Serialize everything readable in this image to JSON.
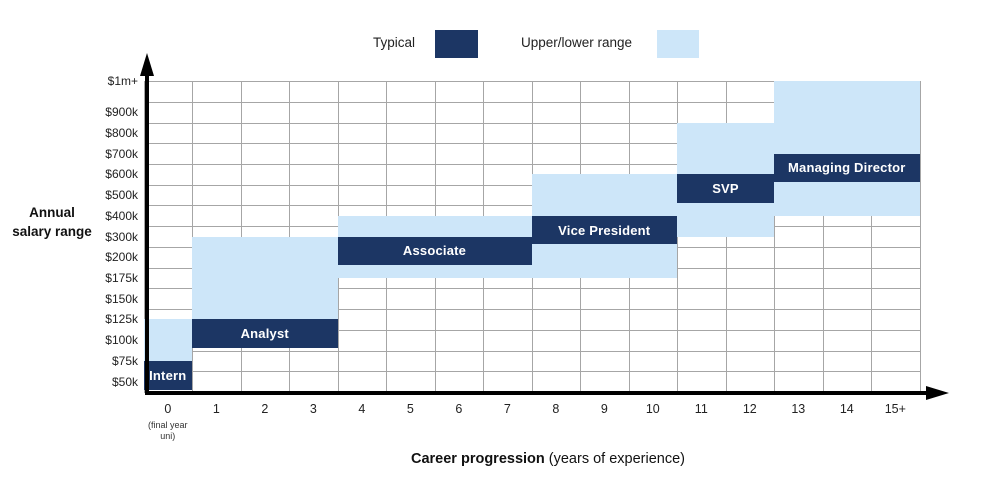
{
  "chart_data": {
    "type": "bar",
    "subtype": "floating-range-boxes",
    "title": "",
    "xlabel_bold": "Career progression",
    "xlabel_regular": " (years of experience)",
    "ylabel": "Annual salary range",
    "x_ticks": [
      "0",
      "1",
      "2",
      "3",
      "4",
      "5",
      "6",
      "7",
      "8",
      "9",
      "10",
      "11",
      "12",
      "13",
      "14",
      "15+"
    ],
    "x_tick_zero_note": "(final year uni)",
    "y_ticks": [
      "$50k",
      "$75k",
      "$100k",
      "$125k",
      "$150k",
      "$175k",
      "$200k",
      "$300k",
      "$400k",
      "$500k",
      "$600k",
      "$700k",
      "$800k",
      "$900k",
      "$1m+"
    ],
    "y_values_k": [
      50,
      75,
      100,
      125,
      150,
      175,
      200,
      300,
      400,
      500,
      600,
      700,
      800,
      900,
      1000
    ],
    "grid": true,
    "legend_position": "top-center",
    "legend": [
      {
        "label": "Typical",
        "color": "#1c3664"
      },
      {
        "label": "Upper/lower range",
        "color": "#cde6f9"
      }
    ],
    "series": [
      {
        "name": "Intern",
        "years": [
          -0.5,
          0.5
        ],
        "typical_k": [
          50,
          75
        ],
        "range_k": [
          75,
          125
        ]
      },
      {
        "name": "Analyst",
        "years": [
          0.5,
          3.5
        ],
        "typical_k": [
          100,
          125
        ],
        "range_k": [
          100,
          300
        ]
      },
      {
        "name": "Associate",
        "years": [
          3.5,
          7.5
        ],
        "typical_k": [
          200,
          300
        ],
        "range_k": [
          175,
          400
        ]
      },
      {
        "name": "Vice President",
        "years": [
          7.5,
          10.5
        ],
        "typical_k": [
          300,
          400
        ],
        "range_k": [
          175,
          600
        ]
      },
      {
        "name": "SVP",
        "years": [
          10.5,
          12.5
        ],
        "typical_k": [
          500,
          600
        ],
        "range_k": [
          300,
          850
        ]
      },
      {
        "name": "Managing Director",
        "years": [
          12.5,
          15.5
        ],
        "typical_k": [
          600,
          700
        ],
        "range_k": [
          400,
          1000
        ]
      }
    ],
    "colors": {
      "typical": "#1c3664",
      "range": "#cde6f9",
      "grid": "#a6a6a6",
      "axis": "#000000",
      "text": "#1f1f1f"
    }
  }
}
